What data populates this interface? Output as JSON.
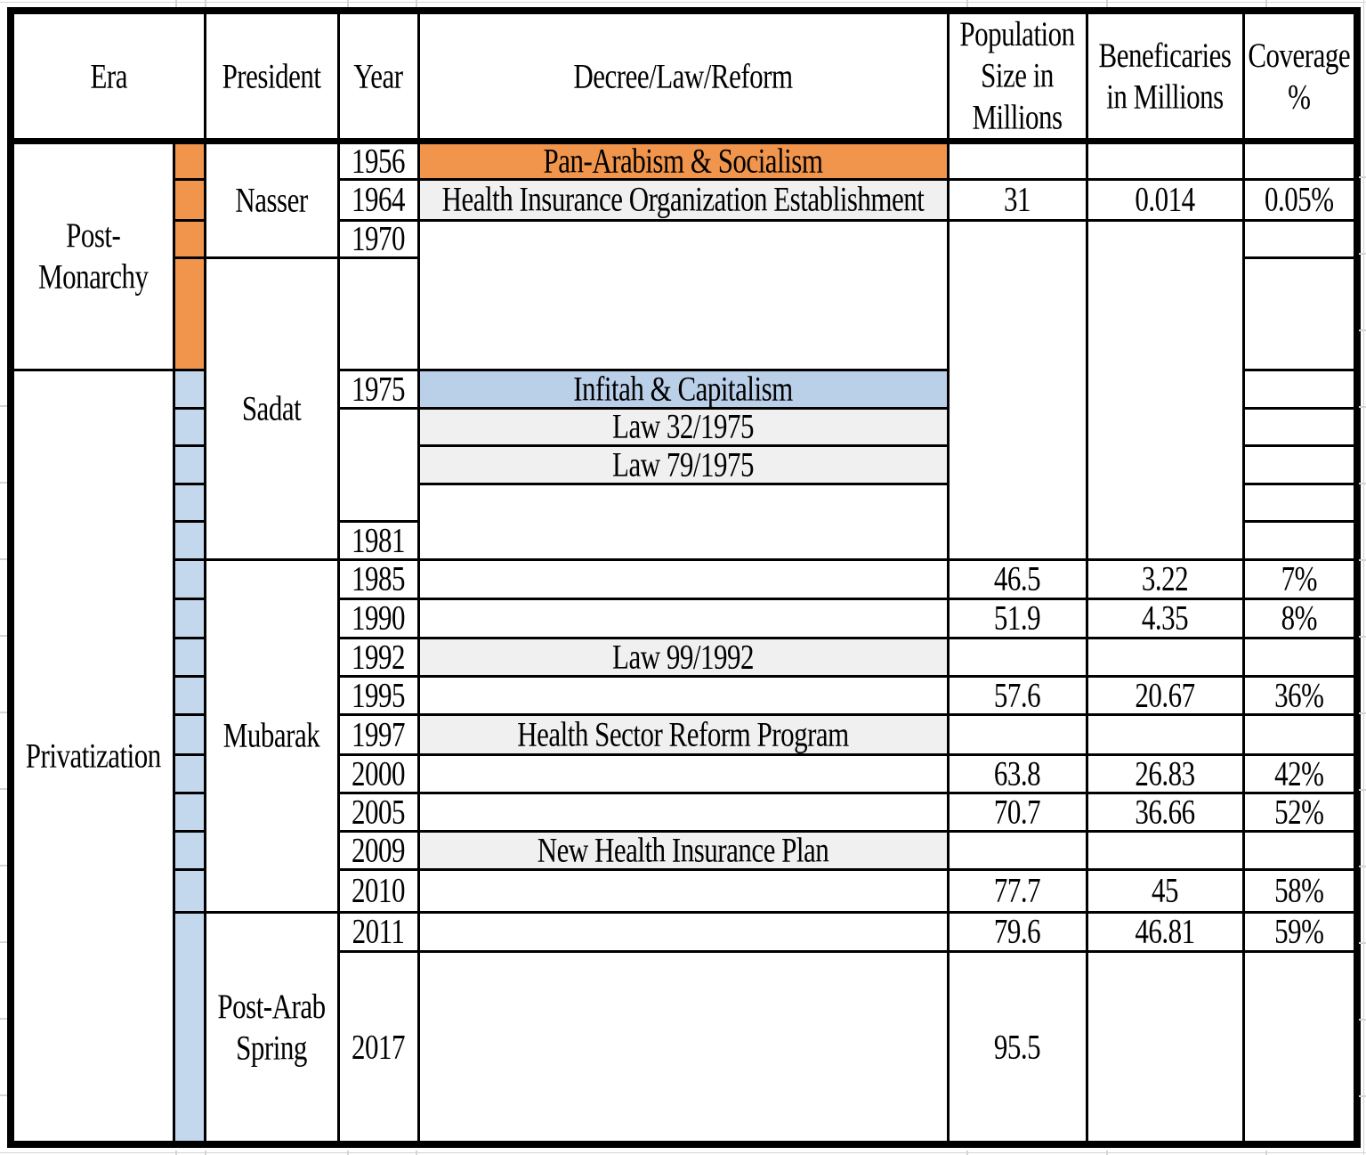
{
  "header": {
    "era": "Era",
    "president": "President",
    "year": "Year",
    "decree": "Decree/Law/Reform",
    "population": "Population Size in Millions",
    "beneficiaries": "Beneficaries in Millions",
    "coverage": "Coverage %"
  },
  "eras": [
    {
      "label": "Post-Monarchy",
      "band_color": "#F0954B"
    },
    {
      "label": "Privatization",
      "band_color": "#C3D7ED"
    }
  ],
  "presidents": [
    "Nasser",
    "Sadat",
    "Mubarak",
    "Post-Arab Spring"
  ],
  "rows": [
    {
      "year": "1956",
      "decree": "Pan-Arabism & Socialism",
      "decree_fill": "orange",
      "population": "",
      "beneficiaries": "",
      "coverage": ""
    },
    {
      "year": "1964",
      "decree": "Health Insurance Organization Establishment",
      "decree_fill": "gray",
      "population": "31",
      "beneficiaries": "0.014",
      "coverage": "0.05%"
    },
    {
      "year": "1970",
      "decree": "",
      "decree_fill": "",
      "population": "",
      "beneficiaries": "",
      "coverage": ""
    },
    {
      "year": "",
      "decree": "",
      "decree_fill": "",
      "population": "",
      "beneficiaries": "",
      "coverage": ""
    },
    {
      "year": "1975",
      "decree": "Infitah & Capitalism",
      "decree_fill": "blue",
      "population": "",
      "beneficiaries": "",
      "coverage": ""
    },
    {
      "year": "",
      "decree": "Law 32/1975",
      "decree_fill": "gray",
      "population": "",
      "beneficiaries": "",
      "coverage": ""
    },
    {
      "year": "",
      "decree": "Law 79/1975",
      "decree_fill": "gray",
      "population": "",
      "beneficiaries": "",
      "coverage": ""
    },
    {
      "year": "",
      "decree": "",
      "decree_fill": "",
      "population": "",
      "beneficiaries": "",
      "coverage": ""
    },
    {
      "year": "1981",
      "decree": "",
      "decree_fill": "",
      "population": "",
      "beneficiaries": "",
      "coverage": ""
    },
    {
      "year": "1985",
      "decree": "",
      "decree_fill": "",
      "population": "46.5",
      "beneficiaries": "3.22",
      "coverage": "7%"
    },
    {
      "year": "1990",
      "decree": "",
      "decree_fill": "",
      "population": "51.9",
      "beneficiaries": "4.35",
      "coverage": "8%"
    },
    {
      "year": "1992",
      "decree": "Law 99/1992",
      "decree_fill": "gray",
      "population": "",
      "beneficiaries": "",
      "coverage": ""
    },
    {
      "year": "1995",
      "decree": "",
      "decree_fill": "",
      "population": "57.6",
      "beneficiaries": "20.67",
      "coverage": "36%"
    },
    {
      "year": "1997",
      "decree": "Health Sector Reform Program",
      "decree_fill": "gray",
      "population": "",
      "beneficiaries": "",
      "coverage": ""
    },
    {
      "year": "2000",
      "decree": "",
      "decree_fill": "",
      "population": "63.8",
      "beneficiaries": "26.83",
      "coverage": "42%"
    },
    {
      "year": "2005",
      "decree": "",
      "decree_fill": "",
      "population": "70.7",
      "beneficiaries": "36.66",
      "coverage": "52%"
    },
    {
      "year": "2009",
      "decree": "New Health Insurance Plan",
      "decree_fill": "gray",
      "population": "",
      "beneficiaries": "",
      "coverage": ""
    },
    {
      "year": "2010",
      "decree": "",
      "decree_fill": "",
      "population": "77.7",
      "beneficiaries": "45",
      "coverage": "58%"
    },
    {
      "year": "2011",
      "decree": "",
      "decree_fill": "",
      "population": "79.6",
      "beneficiaries": "46.81",
      "coverage": "59%"
    },
    {
      "year": "2017",
      "decree": "",
      "decree_fill": "",
      "population": "95.5",
      "beneficiaries": "",
      "coverage": ""
    }
  ],
  "colors": {
    "orange_fill": "#F0954B",
    "blue_band_fill": "#C3D7ED",
    "blue_cell_fill": "#BACFE8",
    "gray_cell_fill": "#F0F0F0",
    "border": "#000000",
    "outside_gridline": "#D4D4D4"
  }
}
